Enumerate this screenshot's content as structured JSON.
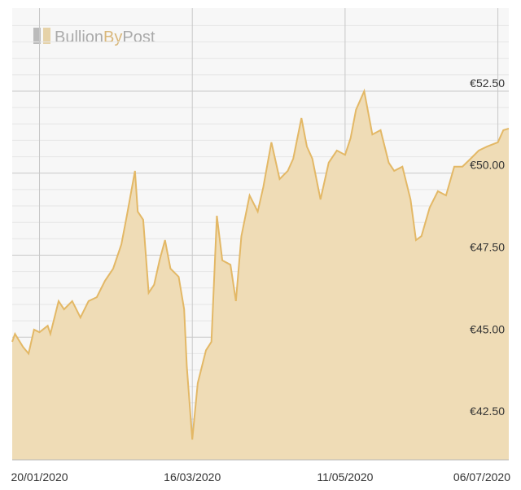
{
  "chart_data": {
    "type": "area",
    "watermark": [
      "Bullion",
      "By",
      "Post"
    ],
    "x": [
      "2020-01-10",
      "2020-01-11",
      "2020-01-14",
      "2020-01-16",
      "2020-01-18",
      "2020-01-20",
      "2020-01-23",
      "2020-01-24",
      "2020-01-27",
      "2020-01-29",
      "2020-02-01",
      "2020-02-04",
      "2020-02-07",
      "2020-02-10",
      "2020-02-13",
      "2020-02-16",
      "2020-02-19",
      "2020-02-21",
      "2020-02-24",
      "2020-02-25",
      "2020-02-27",
      "2020-02-29",
      "2020-03-02",
      "2020-03-04",
      "2020-03-06",
      "2020-03-08",
      "2020-03-11",
      "2020-03-13",
      "2020-03-14",
      "2020-03-16",
      "2020-03-18",
      "2020-03-21",
      "2020-03-23",
      "2020-03-25",
      "2020-03-27",
      "2020-03-30",
      "2020-04-01",
      "2020-04-03",
      "2020-04-06",
      "2020-04-09",
      "2020-04-11",
      "2020-04-14",
      "2020-04-17",
      "2020-04-20",
      "2020-04-22",
      "2020-04-25",
      "2020-04-27",
      "2020-04-29",
      "2020-05-02",
      "2020-05-05",
      "2020-05-08",
      "2020-05-11",
      "2020-05-13",
      "2020-05-15",
      "2020-05-18",
      "2020-05-21",
      "2020-05-24",
      "2020-05-27",
      "2020-05-29",
      "2020-06-01",
      "2020-06-04",
      "2020-06-06",
      "2020-06-08",
      "2020-06-11",
      "2020-06-14",
      "2020-06-17",
      "2020-06-20",
      "2020-06-23",
      "2020-06-26",
      "2020-06-29",
      "2020-07-02",
      "2020-07-06",
      "2020-07-08",
      "2020-07-10"
    ],
    "series": [
      {
        "color": "#e3b866",
        "fill": "#efdcb6",
        "values": [
          44.86,
          45.1,
          44.7,
          44.5,
          45.23,
          45.15,
          45.35,
          45.1,
          46.1,
          45.85,
          46.1,
          45.6,
          46.1,
          46.22,
          46.72,
          47.09,
          47.83,
          48.7,
          50.07,
          48.83,
          48.58,
          46.35,
          46.6,
          47.34,
          47.96,
          47.09,
          46.84,
          45.85,
          44.1,
          41.88,
          43.6,
          44.6,
          44.86,
          48.7,
          47.34,
          47.21,
          46.1,
          48.08,
          49.32,
          48.83,
          49.57,
          50.94,
          49.82,
          50.07,
          50.44,
          51.68,
          50.81,
          50.44,
          49.2,
          50.32,
          50.69,
          50.56,
          51.06,
          51.93,
          52.5,
          51.18,
          51.31,
          50.32,
          50.07,
          50.2,
          49.2,
          47.96,
          48.08,
          48.95,
          49.45,
          49.32,
          50.2,
          50.2,
          50.44,
          50.69,
          50.81,
          50.94,
          51.31,
          51.36
        ]
      }
    ],
    "xlim": [
      "2020-01-10",
      "2020-07-10"
    ],
    "xticks": [
      {
        "value": "2020-01-20",
        "label": "20/01/2020"
      },
      {
        "value": "2020-03-16",
        "label": "16/03/2020"
      },
      {
        "value": "2020-05-11",
        "label": "11/05/2020"
      },
      {
        "value": "2020-07-06",
        "label": "06/07/2020"
      }
    ],
    "ylim": [
      41.26,
      55.03
    ],
    "yticks": [
      {
        "value": 42.5,
        "label": "€42.50"
      },
      {
        "value": 45,
        "label": "€45.00"
      },
      {
        "value": 47.5,
        "label": "€47.50"
      },
      {
        "value": 50,
        "label": "€50.00"
      },
      {
        "value": 52.5,
        "label": "€52.50"
      }
    ],
    "minor_yticks": [
      41.5,
      42,
      43,
      43.5,
      44,
      44.5,
      45.5,
      46,
      46.5,
      47,
      48,
      48.5,
      49,
      49.5,
      50.5,
      51,
      51.5,
      52,
      53,
      53.5,
      54,
      54.5
    ],
    "grid": true
  }
}
